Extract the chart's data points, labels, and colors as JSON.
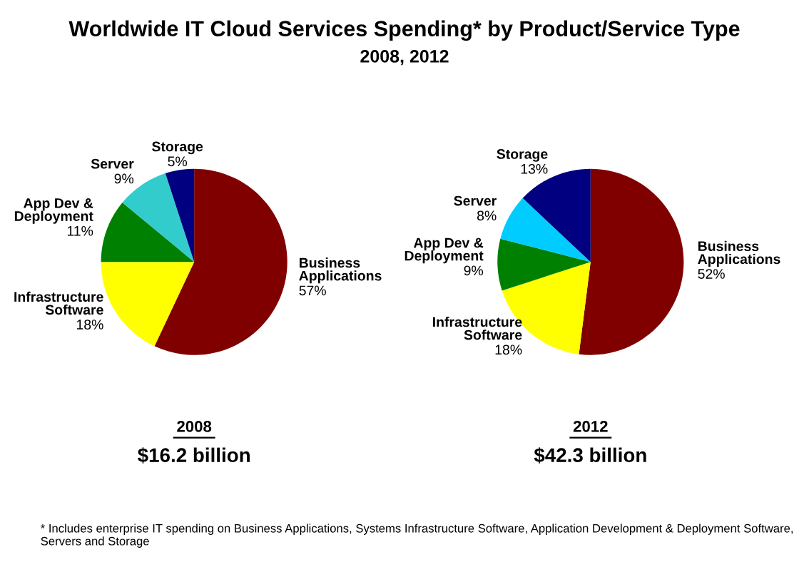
{
  "chart_data": [
    {
      "type": "pie",
      "title": "Worldwide IT Cloud Services Spending* by Product/Service Type",
      "subtitle": "2008, 2012",
      "xlabel": "2008",
      "annotations": [
        "$16.2 billion",
        "* Includes enterprise IT spending on Business Applications, Systems Infrastructure Software, Application Development & Deployment Software, Servers and Storage"
      ],
      "categories": [
        "Business\nApplications",
        "Infrastructure\nSoftware",
        "App Dev &\nDeployment",
        "Server",
        "Storage"
      ],
      "values": [
        57,
        18,
        11,
        9,
        5
      ],
      "value_labels": [
        "57%",
        "18%",
        "11%",
        "9%",
        "5%"
      ],
      "colors": [
        "#800000",
        "#ffff00",
        "#008000",
        "#33cccc",
        "#000080"
      ]
    },
    {
      "type": "pie",
      "xlabel": "2012",
      "annotations": [
        "$42.3 billion"
      ],
      "categories": [
        "Business\nApplications",
        "Infrastructure\nSoftware",
        "App Dev &\nDeployment",
        "Server",
        "Storage"
      ],
      "values": [
        52,
        18,
        9,
        8,
        13
      ],
      "value_labels": [
        "52%",
        "18%",
        "9%",
        "8%",
        "13%"
      ],
      "colors": [
        "#800000",
        "#ffff00",
        "#008000",
        "#00ccff",
        "#000080"
      ]
    }
  ]
}
